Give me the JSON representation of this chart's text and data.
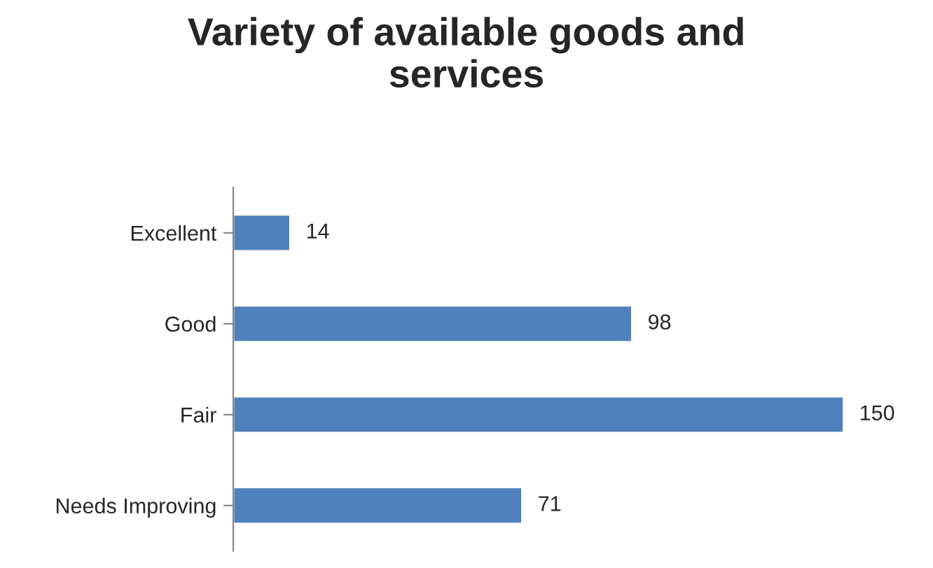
{
  "chart_data": {
    "type": "bar",
    "orientation": "horizontal",
    "title": "Variety of available goods and services",
    "categories": [
      "Excellent",
      "Good",
      "Fair",
      "Needs Improving"
    ],
    "series": [
      {
        "color": "#4f81bd",
        "values": [
          14,
          98,
          150,
          71
        ]
      }
    ],
    "data_labels": true,
    "grid": false,
    "legend": false
  }
}
